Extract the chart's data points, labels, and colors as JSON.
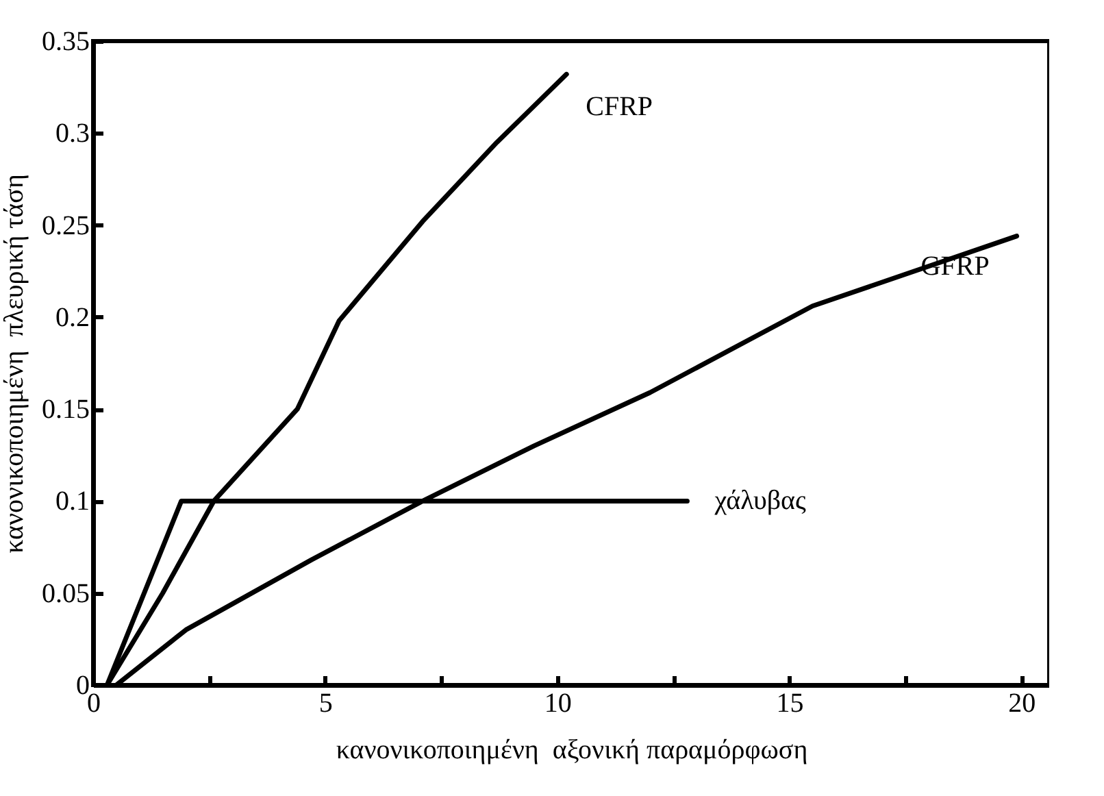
{
  "chart_data": {
    "type": "line",
    "xlabel": "κανονικοποιημένη  αξονική παραμόρφωση",
    "ylabel": "κανονικοποιημένη  πλευρική τάση",
    "xlim": [
      0,
      20.6
    ],
    "ylim": [
      0,
      0.35
    ],
    "xticks": [
      0,
      {
        "value": 2.5,
        "label": null
      },
      5,
      {
        "value": 7.5,
        "label": null
      },
      10,
      {
        "value": 12.5,
        "label": null
      },
      15,
      {
        "value": 17.5,
        "label": null
      },
      20
    ],
    "yticks": [
      0,
      0.05,
      0.1,
      0.15,
      0.2,
      0.25,
      0.3,
      0.35
    ],
    "grid": false,
    "marker": "none",
    "line_style": "solid",
    "series": [
      {
        "name": "CFRP",
        "color": "#000000",
        "x": [
          0.3,
          1.5,
          2.6,
          4.4,
          5.3,
          7.1,
          8.7,
          10.2
        ],
        "values": [
          0,
          0.05,
          0.1,
          0.15,
          0.198,
          0.252,
          0.295,
          0.332
        ]
      },
      {
        "name": "GFRP",
        "color": "#000000",
        "x": [
          0.5,
          2,
          4.7,
          7.1,
          9.5,
          12,
          15.5,
          19.9
        ],
        "values": [
          0,
          0.03,
          0.068,
          0.1,
          0.13,
          0.159,
          0.206,
          0.244
        ]
      },
      {
        "name": "χάλυβας",
        "color": "#000000",
        "x": [
          0.3,
          1.9,
          12.8
        ],
        "values": [
          0,
          0.1,
          0.1
        ]
      }
    ]
  }
}
